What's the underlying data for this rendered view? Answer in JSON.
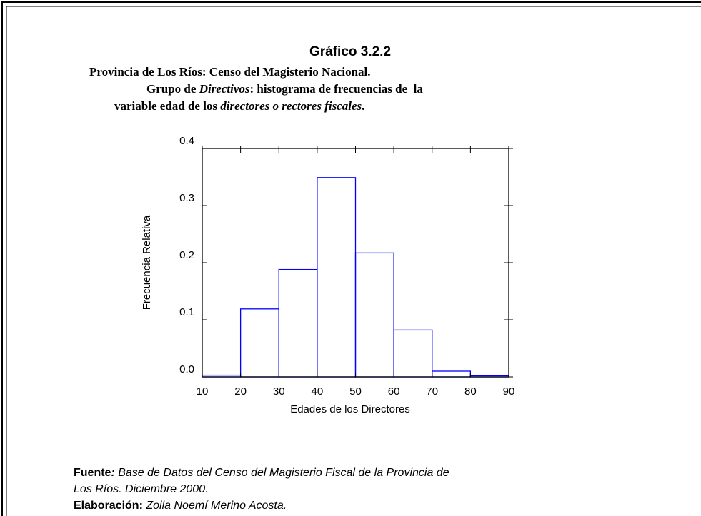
{
  "chart_data": {
    "type": "histogram",
    "title": "Gráfico 3.2.2",
    "subtitle": [
      [
        "Provincia de Los Ríos: Censo del Magisterio Nacional."
      ],
      [
        "Grupo de ",
        "Directivos",
        ": histograma de frecuencias de  la"
      ],
      [
        "variable edad de los ",
        "directores o rectores fiscales",
        "."
      ]
    ],
    "xlabel": "Edades de los Directores",
    "ylabel": "Frecuencia Relativa",
    "bins": [
      10,
      20,
      30,
      40,
      50,
      60,
      70,
      80,
      90
    ],
    "values": [
      0.003,
      0.119,
      0.188,
      0.349,
      0.217,
      0.082,
      0.01,
      0.002
    ],
    "color": "#0000ff",
    "xlim": [
      10,
      90
    ],
    "xticks": [
      10,
      20,
      30,
      40,
      50,
      60,
      70,
      80,
      90
    ],
    "ylim": [
      0,
      0.4
    ],
    "yticks": [
      {
        "value": 0,
        "label": "0.0"
      },
      0.1,
      0.2,
      0.3,
      0.4
    ]
  },
  "source": {
    "label": "Fuente",
    "colon": ":",
    "text": [
      "Base de Datos del Censo del Magisterio Fiscal de la Provincia de",
      "Los Ríos. Diciembre 2000."
    ]
  },
  "credit": {
    "label": "Elaboración:",
    "text": "Zoila Noemí Merino Acosta."
  }
}
